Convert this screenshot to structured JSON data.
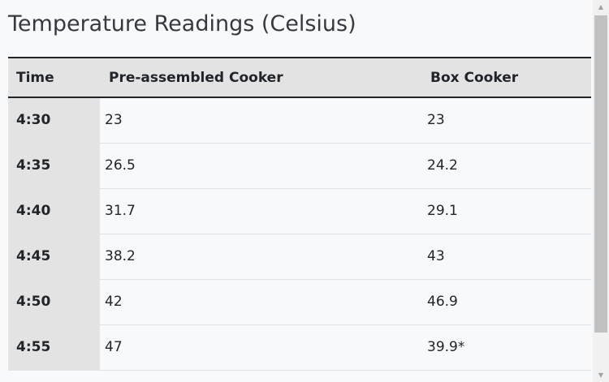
{
  "title": "Temperature Readings (Celsius)",
  "table": {
    "headers": {
      "time": "Time",
      "pre": "Pre-assembled Cooker",
      "box": "Box Cooker"
    },
    "rows": [
      {
        "time": "4:30",
        "pre": "23",
        "box": "23"
      },
      {
        "time": "4:35",
        "pre": "26.5",
        "box": "24.2"
      },
      {
        "time": "4:40",
        "pre": "31.7",
        "box": "29.1"
      },
      {
        "time": "4:45",
        "pre": "38.2",
        "box": "43"
      },
      {
        "time": "4:50",
        "pre": "42",
        "box": "46.9"
      },
      {
        "time": "4:55",
        "pre": "47",
        "box": "39.9*"
      }
    ]
  },
  "scrollbar": {
    "up_icon": "▲",
    "down_icon": "▼"
  }
}
